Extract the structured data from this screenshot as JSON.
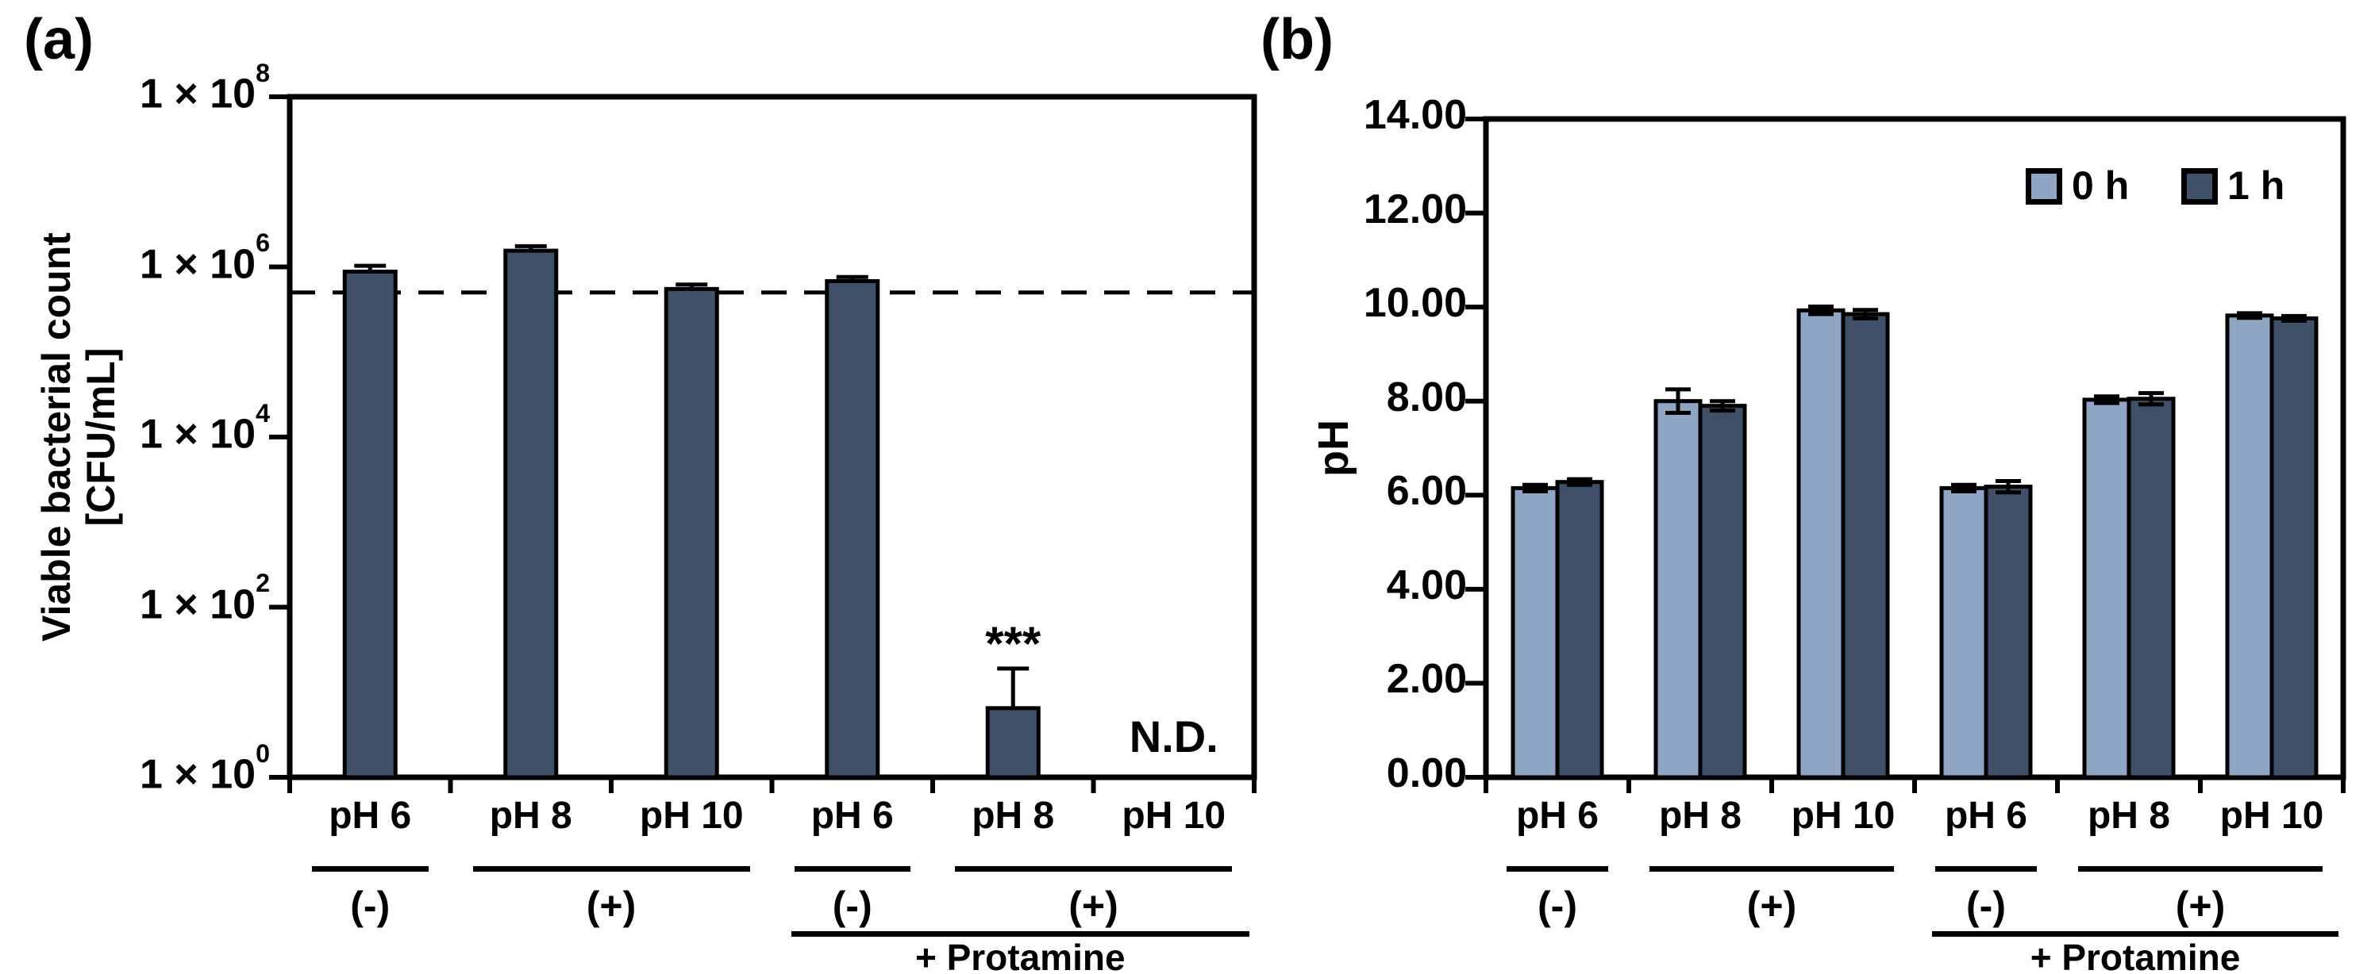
{
  "figure": {
    "panel_a_label": "(a)",
    "panel_b_label": "(b)"
  },
  "chart_data": [
    {
      "id": "a",
      "type": "bar",
      "panel_label": "(a)",
      "ylabel_line1": "Viable bacterial count",
      "ylabel_line2": "[CFU/mL]",
      "y_scale": "log",
      "y_tick_prefix": "1 × 10",
      "y_tick_exponents": [
        8,
        6,
        4,
        2,
        0
      ],
      "ylim_exp": [
        0,
        8
      ],
      "categories": [
        "pH 6",
        "pH 8",
        "pH 10",
        "pH 6",
        "pH 8",
        "pH 10"
      ],
      "values": [
        880000,
        1550000,
        550000,
        680000,
        6.5,
        null
      ],
      "upper_error_values": [
        1030000,
        1750000,
        620000,
        760000,
        19,
        null
      ],
      "baseline_dashed_value": 500000,
      "nd_label": "N.D.",
      "nd_index": 5,
      "significance_label": "***",
      "significance_index": 4,
      "groups": [
        {
          "label": "(-)",
          "from": 0,
          "to": 1
        },
        {
          "label": "(+)",
          "from": 1,
          "to": 3
        },
        {
          "label": "(-)",
          "from": 3,
          "to": 4
        },
        {
          "label": "(+)",
          "from": 4,
          "to": 6
        }
      ],
      "protamine_label": "+ Protamine",
      "protamine_from": 3,
      "protamine_to": 6,
      "bar_color": "#3E5168",
      "grid": false,
      "legend_position": "none"
    },
    {
      "id": "b",
      "type": "bar",
      "panel_label": "(b)",
      "ylabel": "pH",
      "ylim": [
        0,
        14
      ],
      "y_ticks": [
        "14.00",
        "12.00",
        "10.00",
        "8.00",
        "6.00",
        "4.00",
        "2.00",
        "0.00"
      ],
      "categories": [
        "pH 6",
        "pH 8",
        "pH 10",
        "pH 6",
        "pH 8",
        "pH 10"
      ],
      "series": [
        {
          "name": "0 h",
          "color": "#8EA6C3",
          "values": [
            6.15,
            8.0,
            9.93,
            6.15,
            8.03,
            9.82
          ],
          "errors": [
            0.07,
            0.25,
            0.08,
            0.07,
            0.07,
            0.05
          ]
        },
        {
          "name": "1 h",
          "color": "#3E5168",
          "values": [
            6.28,
            7.9,
            9.85,
            6.18,
            8.05,
            9.76
          ],
          "errors": [
            0.06,
            0.1,
            0.09,
            0.12,
            0.12,
            0.05
          ]
        }
      ],
      "groups": [
        {
          "label": "(-)",
          "from": 0,
          "to": 1
        },
        {
          "label": "(+)",
          "from": 1,
          "to": 3
        },
        {
          "label": "(-)",
          "from": 3,
          "to": 4
        },
        {
          "label": "(+)",
          "from": 4,
          "to": 6
        }
      ],
      "protamine_label": "+ Protamine",
      "protamine_from": 3,
      "protamine_to": 6,
      "legend": [
        {
          "label": "0 h",
          "color": "#8EA6C3"
        },
        {
          "label": "1 h",
          "color": "#3E5168"
        }
      ],
      "grid": false,
      "legend_position": "top-right-inside"
    }
  ]
}
